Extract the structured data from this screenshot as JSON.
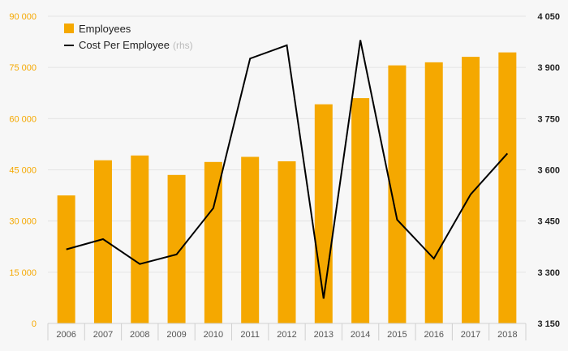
{
  "chart_data": {
    "type": "bar",
    "categories": [
      "2006",
      "2007",
      "2008",
      "2009",
      "2010",
      "2011",
      "2012",
      "2013",
      "2014",
      "2015",
      "2016",
      "2017",
      "2018"
    ],
    "series": [
      {
        "name": "Employees",
        "type": "bar",
        "axis": "left",
        "color": "#f5a800",
        "values": [
          37500,
          47800,
          49200,
          43500,
          47300,
          48800,
          47500,
          64200,
          66000,
          75600,
          76500,
          78100,
          79400
        ]
      },
      {
        "name": "Cost Per Employee",
        "name_suffix": "(rhs)",
        "type": "line",
        "axis": "right",
        "color": "#000000",
        "values": [
          3367,
          3397,
          3324,
          3352,
          3488,
          3926,
          3965,
          3223,
          3980,
          3454,
          3340,
          3528,
          3648
        ]
      }
    ],
    "y_left": {
      "ylim": [
        0,
        90000
      ],
      "ticks": [
        0,
        15000,
        30000,
        45000,
        60000,
        75000,
        90000
      ],
      "tick_labels": [
        "0",
        "15 000",
        "30 000",
        "45 000",
        "60 000",
        "75 000",
        "90 000"
      ]
    },
    "y_right": {
      "ylim": [
        3150,
        4050
      ],
      "ticks": [
        3150,
        3300,
        3450,
        3600,
        3750,
        3900,
        4050
      ],
      "tick_labels": [
        "3 150",
        "3 300",
        "3 450",
        "3 600",
        "3 750",
        "3 900",
        "4 050"
      ]
    },
    "legend": {
      "placement": "top-left"
    },
    "grid": true,
    "title": "",
    "xlabel": "",
    "ylabel": ""
  }
}
